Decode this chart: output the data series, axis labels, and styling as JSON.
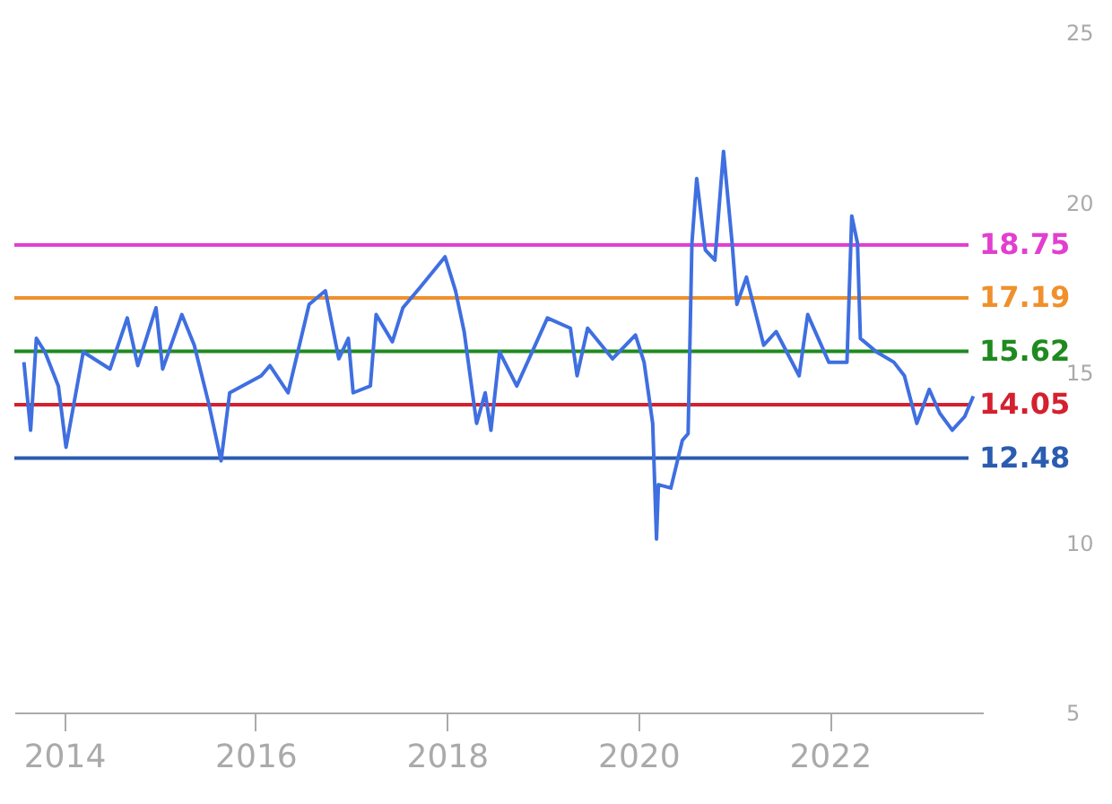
{
  "chart_data": {
    "type": "line",
    "x": [
      2013.58,
      2013.65,
      2013.71,
      2013.8,
      2013.94,
      2014.02,
      2014.2,
      2014.48,
      2014.66,
      2014.77,
      2014.96,
      2015.03,
      2015.23,
      2015.36,
      2015.51,
      2015.64,
      2015.73,
      2016.06,
      2016.15,
      2016.34,
      2016.56,
      2016.73,
      2016.87,
      2016.97,
      2017.02,
      2017.2,
      2017.26,
      2017.43,
      2017.54,
      2017.72,
      2017.98,
      2018.09,
      2018.18,
      2018.31,
      2018.4,
      2018.46,
      2018.55,
      2018.73,
      2019.05,
      2019.29,
      2019.36,
      2019.47,
      2019.73,
      2019.97,
      2020.06,
      2020.15,
      2020.19,
      2020.21,
      2020.34,
      2020.46,
      2020.52,
      2020.56,
      2020.61,
      2020.7,
      2020.8,
      2020.89,
      2020.98,
      2021.03,
      2021.13,
      2021.31,
      2021.44,
      2021.68,
      2021.77,
      2021.99,
      2022.18,
      2022.23,
      2022.29,
      2022.32,
      2022.49,
      2022.67,
      2022.78,
      2022.91,
      2023.04,
      2023.15,
      2023.28,
      2023.41,
      2023.5
    ],
    "series": [
      {
        "color": "#3f6fe0",
        "values": [
          15.3,
          13.3,
          16.0,
          15.6,
          14.6,
          12.8,
          15.6,
          15.1,
          16.6,
          15.2,
          16.9,
          15.1,
          16.7,
          15.8,
          14.1,
          12.4,
          14.4,
          14.9,
          15.2,
          14.4,
          17.0,
          17.4,
          15.4,
          16.0,
          14.4,
          14.6,
          16.7,
          15.9,
          16.9,
          17.5,
          18.4,
          17.4,
          16.2,
          13.5,
          14.4,
          13.3,
          15.6,
          14.6,
          16.6,
          16.3,
          14.9,
          16.3,
          15.4,
          16.1,
          15.3,
          13.5,
          10.1,
          11.7,
          11.6,
          13.0,
          13.2,
          18.8,
          20.7,
          18.6,
          18.3,
          21.5,
          18.8,
          17.0,
          17.8,
          15.8,
          16.2,
          14.9,
          16.7,
          15.3,
          15.3,
          19.6,
          18.8,
          16.0,
          15.6,
          15.3,
          14.9,
          13.5,
          14.5,
          13.8,
          13.3,
          13.7,
          14.3
        ]
      }
    ],
    "xlim": [
      2013.48,
      2023.6
    ],
    "xticks": [
      2014,
      2016,
      2018,
      2020,
      2022
    ],
    "ylim": [
      5,
      25
    ],
    "yticks": [
      5,
      10,
      15,
      20,
      25
    ],
    "ref_lines": [
      {
        "axis": "y",
        "value": 18.75,
        "label": "18.75",
        "color": "#e23fd0"
      },
      {
        "axis": "y",
        "value": 17.19,
        "label": "17.19",
        "color": "#f0902c"
      },
      {
        "axis": "y",
        "value": 15.62,
        "label": "15.62",
        "color": "#1f8a1f"
      },
      {
        "axis": "y",
        "value": 14.05,
        "label": "14.05",
        "color": "#d4202f"
      },
      {
        "axis": "y",
        "value": 12.48,
        "label": "12.48",
        "color": "#2b5cb0"
      }
    ]
  }
}
